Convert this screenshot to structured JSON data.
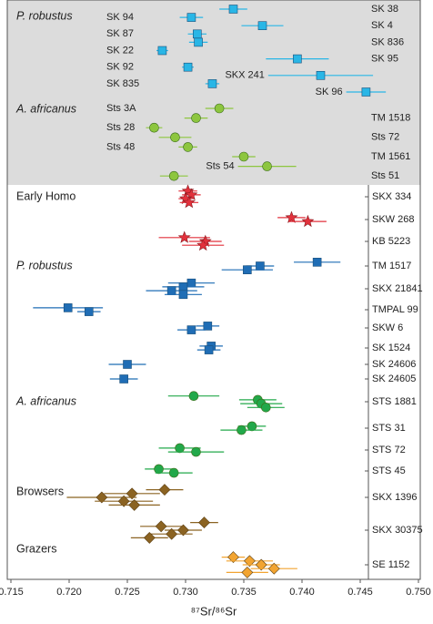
{
  "chart_data": {
    "type": "scatter",
    "xlabel": "⁸⁷Sr/⁸⁶Sr",
    "xlim": [
      0.715,
      0.75
    ],
    "xticks": [
      0.715,
      {
        "value": 0.72,
        "label": "0.720"
      },
      0.725,
      {
        "value": 0.73,
        "label": "0.730"
      },
      0.735,
      {
        "value": 0.74,
        "label": "0.740"
      },
      0.745,
      {
        "value": 0.75,
        "label": "0.750"
      }
    ],
    "reference_groups": [
      {
        "name": "P. robustus",
        "color": "#29b6e6",
        "marker": "square",
        "labels": [
          "SK 38",
          "SK 94",
          "SK 4",
          "SK 87",
          "SK 836",
          "SK 22",
          "SK 95",
          "SK 92",
          "SKX 241",
          "SK 835",
          "SK 96"
        ],
        "values": [
          0.7341,
          0.7305,
          0.7366,
          0.731,
          0.7311,
          0.728,
          0.7396,
          0.7302,
          0.7416,
          0.7323,
          0.7455
        ],
        "errors": [
          0.0012,
          0.001,
          0.0018,
          0.0008,
          0.0008,
          0.0005,
          0.0027,
          0.0005,
          0.0045,
          0.0006,
          0.0017
        ]
      },
      {
        "name": "A. africanus",
        "color": "#8dc63f",
        "marker": "circle",
        "labels": [
          "Sts 3A",
          "TM 1518",
          "Sts 28",
          "Sts 72",
          "Sts 48",
          "TM 1561",
          "Sts 54",
          "Sts 51"
        ],
        "values": [
          0.7329,
          0.7309,
          0.7273,
          0.7291,
          0.7302,
          0.735,
          0.737,
          0.729
        ],
        "errors": [
          0.0012,
          0.001,
          0.0007,
          0.0014,
          0.0008,
          0.001,
          0.0025,
          0.0012
        ]
      }
    ],
    "tooth_groups": [
      {
        "name": "Early Homo",
        "color": "#e2313c",
        "marker": "star",
        "specimens": [
          {
            "name": "SKX 334",
            "values": [
              0.7302,
              0.7305,
              0.73,
              0.7303
            ],
            "errors": [
              0.0008,
              0.0008,
              0.0006,
              0.0008
            ]
          },
          {
            "name": "SKW 268",
            "values": [
              0.7391,
              0.7405
            ],
            "errors": [
              0.0012,
              0.0016
            ]
          },
          {
            "name": "KB 5223",
            "values": [
              0.7299,
              0.7317,
              0.7315
            ],
            "errors": [
              0.0022,
              0.0014,
              0.0018
            ]
          }
        ]
      },
      {
        "name": "P. robustus",
        "color": "#1f6db5",
        "marker": "square",
        "specimens": [
          {
            "name": "TM 1517",
            "values": [
              0.7413,
              0.7364,
              0.7353
            ],
            "errors": [
              0.002,
              0.0012,
              0.0022
            ]
          },
          {
            "name": "SKX 21841",
            "values": [
              0.7305,
              0.7298,
              0.7288,
              0.7298
            ],
            "errors": [
              0.002,
              0.0018,
              0.0022,
              0.0016
            ]
          },
          {
            "name": "TMPAL 99",
            "values": [
              0.7199,
              0.7217
            ],
            "errors": [
              0.003,
              0.001
            ]
          },
          {
            "name": "SKW 6",
            "values": [
              0.7319,
              0.7305
            ],
            "errors": [
              0.001,
              0.0012
            ]
          },
          {
            "name": "SK 1524",
            "values": [
              0.7322,
              0.732
            ],
            "errors": [
              0.001,
              0.001
            ]
          },
          {
            "name": "SK 24606",
            "values": [
              0.725
            ],
            "errors": [
              0.0016
            ]
          },
          {
            "name": "SK 24605",
            "values": [
              0.7247
            ],
            "errors": [
              0.0012
            ]
          }
        ]
      },
      {
        "name": "A. africanus",
        "color": "#22a84a",
        "marker": "circle",
        "specimens": [
          {
            "name": "STS 1881",
            "values": [
              0.7307,
              0.7362,
              0.7365,
              0.7369
            ],
            "errors": [
              0.0022,
              0.0016,
              0.0018,
              0.0016
            ]
          },
          {
            "name": "STS 31",
            "values": [
              0.7357,
              0.7348
            ],
            "errors": [
              0.0012,
              0.0018
            ]
          },
          {
            "name": "STS 72",
            "values": [
              0.7295,
              0.7309
            ],
            "errors": [
              0.0018,
              0.0024
            ]
          },
          {
            "name": "STS 45",
            "values": [
              0.7277,
              0.729
            ],
            "errors": [
              0.0012,
              0.0016
            ]
          }
        ]
      },
      {
        "name": "Browsers",
        "color": "#8b6322",
        "marker": "diamond",
        "specimens": [
          {
            "name": "SKX 1396",
            "values": [
              0.7282,
              0.7254,
              0.7228,
              0.7247,
              0.7256
            ],
            "errors": [
              0.0016,
              0.0024,
              0.003,
              0.0025,
              0.0022
            ]
          },
          {
            "name": "SKX 30375",
            "values": [
              0.7316,
              0.7279,
              0.7298,
              0.7288,
              0.7269
            ],
            "errors": [
              0.0012,
              0.0018,
              0.0016,
              0.0018,
              0.0016
            ]
          }
        ]
      },
      {
        "name": "Grazers",
        "color": "#f2a431",
        "marker": "diamond",
        "specimens": [
          {
            "name": "SE 1152",
            "values": [
              0.7341,
              0.7355,
              0.7365,
              0.7376,
              0.7353
            ],
            "errors": [
              0.001,
              0.002,
              0.0016,
              0.002,
              0.0018
            ]
          }
        ]
      }
    ]
  }
}
